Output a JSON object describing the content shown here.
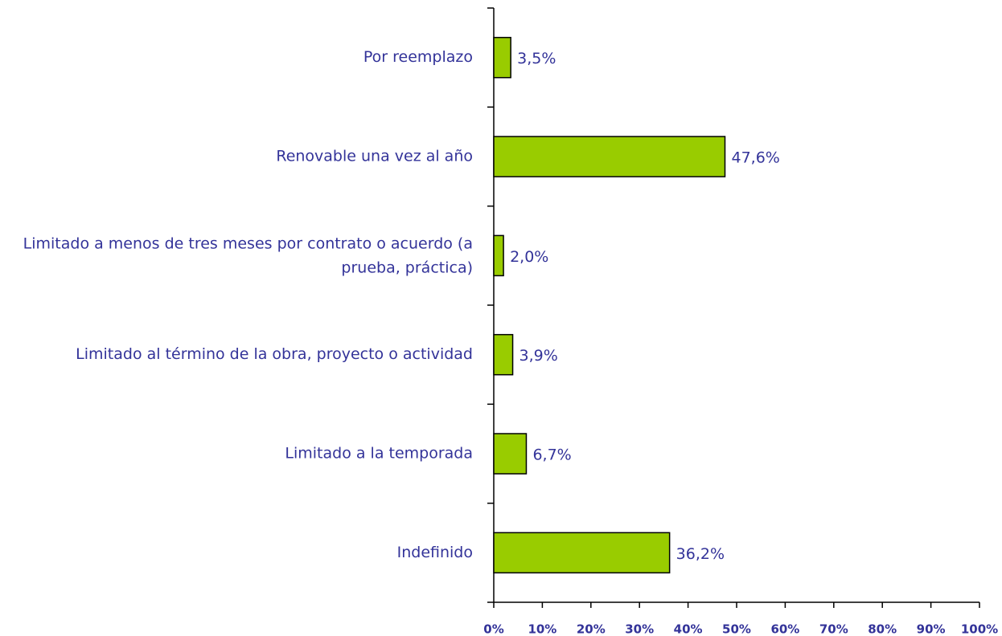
{
  "chart_data": {
    "type": "bar",
    "orientation": "horizontal",
    "categories": [
      "Por reemplazo",
      "Renovable una vez al año",
      "Limitado a menos de tres meses por contrato o acuerdo (a prueba, práctica)",
      "Limitado al término de la obra, proyecto o actividad",
      "Limitado a la temporada",
      "Indefinido"
    ],
    "values": [
      3.5,
      47.6,
      2.0,
      3.9,
      6.7,
      36.2
    ],
    "value_labels": [
      "3,5%",
      "47,6%",
      "2,0%",
      "3,9%",
      "6,7%",
      "36,2%"
    ],
    "color": "#99cc00",
    "xlim": [
      0,
      100
    ],
    "xticks": [
      {
        "value": 0,
        "label": "0%"
      },
      {
        "value": 10,
        "label": "10%"
      },
      {
        "value": 20,
        "label": "20%"
      },
      {
        "value": 30,
        "label": "30%"
      },
      {
        "value": 40,
        "label": "40%"
      },
      {
        "value": 50,
        "label": "50%"
      },
      {
        "value": 60,
        "label": "60%"
      },
      {
        "value": 70,
        "label": "70%"
      },
      {
        "value": 80,
        "label": "80%"
      },
      {
        "value": 90,
        "label": "90%"
      },
      {
        "value": 100,
        "label": "100%"
      }
    ],
    "grid": false
  }
}
